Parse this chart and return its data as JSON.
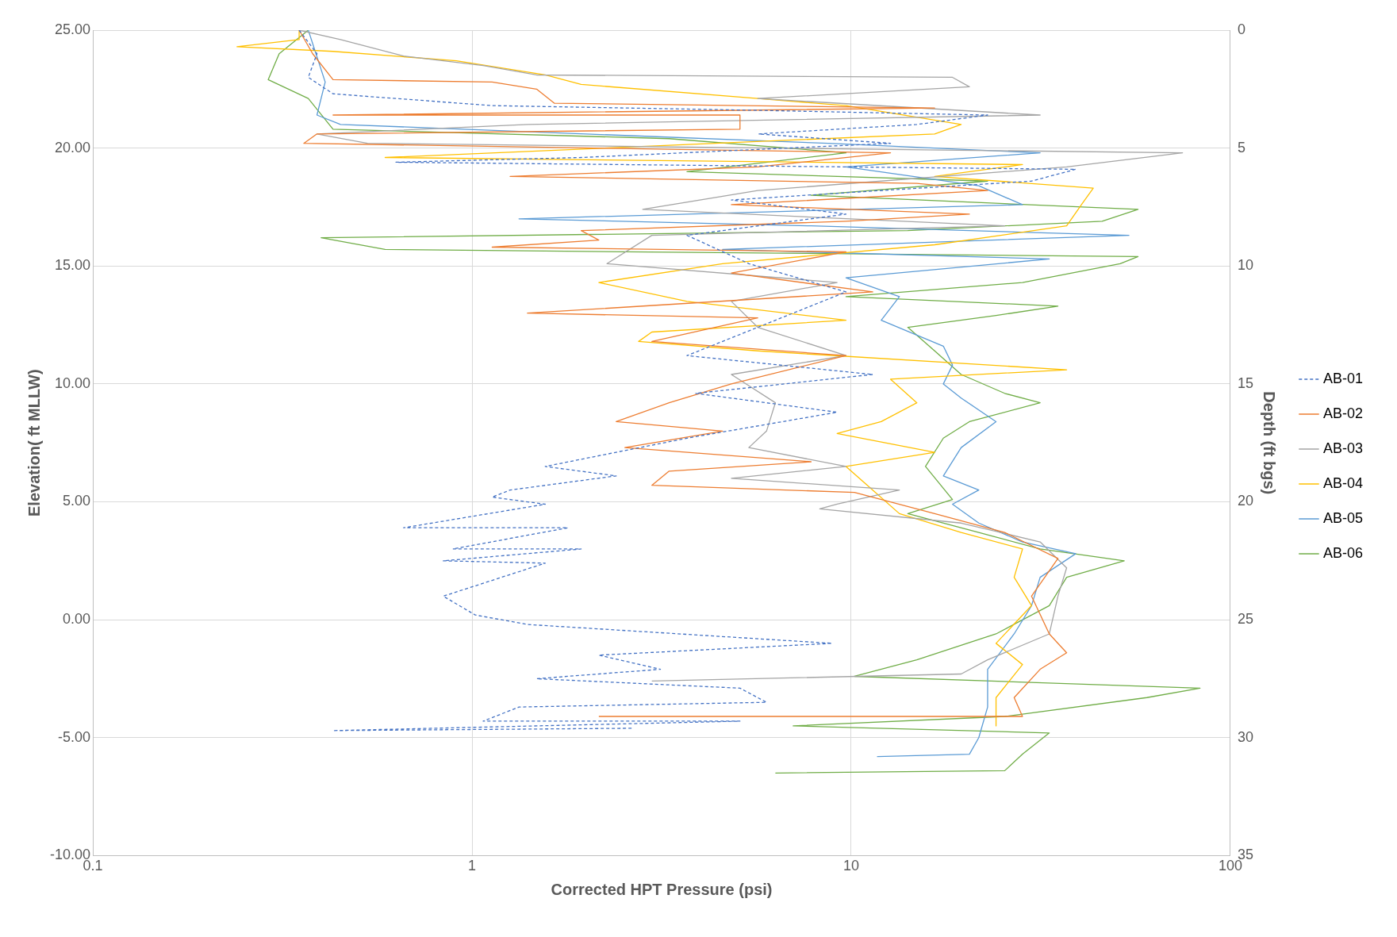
{
  "chart_data": {
    "type": "line",
    "xlabel": "Corrected HPT Pressure (psi)",
    "ylabel": "Elevation( ft MLLW)",
    "y2label": "Depth (ft bgs)",
    "log": "x",
    "grid": true,
    "legend": "right",
    "xlim": [
      0.1,
      100
    ],
    "xticks": [
      0.1,
      1,
      10,
      100
    ],
    "ylim": [
      -10,
      25
    ],
    "yticks": [
      {
        "value": -10,
        "label": "-10.00"
      },
      {
        "value": -5,
        "label": "-5.00"
      },
      {
        "value": 0,
        "label": "0.00"
      },
      {
        "value": 5,
        "label": "5.00"
      },
      {
        "value": 10,
        "label": "10.00"
      },
      {
        "value": 15,
        "label": "15.00"
      },
      {
        "value": 20,
        "label": "20.00"
      },
      {
        "value": 25,
        "label": "25.00"
      }
    ],
    "y2lim": [
      35,
      0
    ],
    "y2ticks": [
      0,
      5,
      10,
      15,
      20,
      25,
      30,
      35
    ],
    "series": [
      {
        "name": "AB-01",
        "color": "#4472c4",
        "line_style": "dashed",
        "x": [
          0.35,
          0.39,
          0.37,
          0.43,
          1.13,
          5.7,
          22.9,
          14.9,
          5.7,
          12.7,
          1.94,
          0.63,
          39.1,
          29.9,
          4.83,
          9.69,
          3.69,
          5.37,
          9.69,
          5.67,
          3.69,
          11.4,
          3.89,
          9.18,
          3.69,
          1.56,
          2.4,
          1.26,
          1.13,
          1.56,
          0.66,
          1.79,
          0.89,
          1.94,
          0.84,
          1.56,
          0.84,
          1.02,
          1.4,
          8.9,
          2.16,
          3.14,
          1.48,
          5.09,
          5.98,
          1.33,
          1.07,
          5.09,
          0.43,
          2.67
        ],
        "values": [
          25,
          24,
          23,
          22.3,
          21.8,
          21.6,
          21.4,
          21,
          20.6,
          20.2,
          19.6,
          19.4,
          19.1,
          18.6,
          17.8,
          17.2,
          16.3,
          15.1,
          13.9,
          12.4,
          11.2,
          10.4,
          9.6,
          8.8,
          7.7,
          6.5,
          6.1,
          5.5,
          5.2,
          4.9,
          3.9,
          3.9,
          3,
          3,
          2.5,
          2.4,
          1,
          0.2,
          -0.2,
          -1,
          -1.5,
          -2.1,
          -2.5,
          -2.9,
          -3.5,
          -3.7,
          -4.3,
          -4.3,
          -4.7,
          -4.6
        ]
      },
      {
        "name": "AB-02",
        "color": "#ed7d31",
        "x": [
          0.35,
          0.38,
          0.43,
          1.13,
          1.48,
          1.65,
          16.6,
          0.43,
          5.09,
          5.09,
          0.39,
          0.36,
          12.7,
          5.67,
          1.26,
          14.9,
          22.9,
          4.83,
          20.5,
          9.69,
          1.94,
          2.16,
          1.13,
          9.69,
          4.83,
          11.4,
          1.4,
          5.67,
          2.98,
          9.69,
          4.83,
          3.31,
          2.4,
          4.58,
          2.53,
          7.84,
          3.31,
          2.98,
          10.2,
          16.6,
          25.4,
          35.1,
          29.9,
          33.3,
          37,
          31.5,
          26.9,
          28.3,
          2.16
        ],
        "values": [
          25,
          24,
          22.9,
          22.8,
          22.5,
          21.9,
          21.7,
          21.4,
          21.4,
          20.8,
          20.6,
          20.2,
          19.8,
          19.2,
          18.8,
          18.5,
          18.2,
          17.6,
          17.2,
          16.9,
          16.5,
          16.1,
          15.8,
          15.6,
          14.7,
          13.9,
          13,
          12.8,
          11.8,
          11.2,
          10,
          9.2,
          8.4,
          8,
          7.3,
          6.7,
          6.3,
          5.7,
          5.4,
          4.5,
          3.7,
          2.6,
          1,
          -0.6,
          -1.4,
          -2.1,
          -3.3,
          -4.1,
          -4.1
        ]
      },
      {
        "name": "AB-03",
        "color": "#a5a5a5",
        "x": [
          0.35,
          0.45,
          0.66,
          1.07,
          1.48,
          18.5,
          20.5,
          5.67,
          31.5,
          1.4,
          0.39,
          0.53,
          74.8,
          37,
          5.67,
          2.82,
          25.4,
          2.98,
          2.27,
          9.18,
          4.83,
          5.67,
          9.69,
          4.83,
          6.31,
          5.98,
          5.37,
          9.69,
          4.83,
          13.4,
          9.18,
          8.26,
          19.5,
          31.5,
          37,
          35.1,
          33.3,
          22.9,
          19.5,
          2.98
        ],
        "values": [
          25,
          24.6,
          23.9,
          23.5,
          23.1,
          23,
          22.6,
          22.1,
          21.4,
          21,
          20.6,
          20.2,
          19.8,
          19.2,
          18.2,
          17.4,
          16.7,
          16.3,
          15.1,
          14.3,
          13.5,
          12.4,
          11.2,
          10.4,
          9.2,
          8,
          7.3,
          6.5,
          6,
          5.5,
          4.9,
          4.7,
          4.1,
          3.3,
          2.2,
          1,
          -0.6,
          -1.7,
          -2.3,
          -2.6
        ]
      },
      {
        "name": "AB-04",
        "color": "#ffc000",
        "x": [
          0.35,
          0.35,
          0.24,
          0.43,
          0.91,
          1.56,
          1.94,
          5.67,
          9.69,
          19.5,
          16.6,
          0.59,
          28.3,
          16.6,
          43.5,
          41.3,
          37,
          16.6,
          4.58,
          2.16,
          3.69,
          9.69,
          2.98,
          2.75,
          5.67,
          37,
          12.7,
          14.9,
          12,
          9.18,
          16.6,
          9.69,
          11.4,
          13.4,
          19.5,
          28.3,
          26.9,
          29.9,
          24.1,
          28.3,
          24.1,
          24.1
        ],
        "values": [
          25,
          24.6,
          24.3,
          24.1,
          23.7,
          23.1,
          22.7,
          22.1,
          21.8,
          21,
          20.6,
          19.6,
          19.3,
          18.8,
          18.3,
          17.8,
          16.7,
          15.9,
          15.1,
          14.3,
          13.5,
          12.7,
          12.2,
          11.8,
          11.4,
          10.6,
          10.2,
          9.2,
          8.4,
          7.9,
          7.1,
          6.5,
          5.5,
          4.5,
          3.7,
          3,
          1.8,
          0.6,
          -1,
          -1.9,
          -3.3,
          -4.5
        ]
      },
      {
        "name": "AB-05",
        "color": "#5b9bd5",
        "x": [
          0.37,
          0.41,
          0.39,
          0.45,
          8.71,
          31.5,
          9.69,
          21.7,
          28.3,
          1.33,
          7.84,
          54,
          4.58,
          33.3,
          9.69,
          13.4,
          12,
          17.5,
          18.5,
          17.5,
          19.5,
          24.1,
          19.5,
          17.5,
          21.7,
          18.5,
          21.7,
          28.3,
          39.1,
          31.5,
          29.9,
          26.9,
          22.9,
          22.9,
          21.7,
          20.5,
          11.7
        ],
        "values": [
          25,
          22.8,
          21.4,
          21,
          20.2,
          19.8,
          19.2,
          18.4,
          17.6,
          17,
          16.7,
          16.3,
          15.7,
          15.3,
          14.5,
          13.7,
          12.7,
          11.6,
          10.8,
          10,
          9.4,
          8.4,
          7.3,
          6.1,
          5.5,
          4.9,
          4.1,
          3.3,
          2.8,
          1.8,
          0.6,
          -0.6,
          -2.1,
          -3.7,
          -5,
          -5.7,
          -5.8
        ]
      },
      {
        "name": "AB-06",
        "color": "#70ad47",
        "x": [
          0.37,
          0.31,
          0.29,
          0.37,
          0.43,
          3.31,
          9.69,
          3.69,
          22.9,
          7.84,
          57.1,
          45.9,
          14.1,
          0.4,
          0.59,
          57.1,
          51.2,
          28.3,
          9.69,
          35.1,
          24.1,
          14.1,
          16.6,
          19.5,
          25.4,
          31.5,
          20.5,
          17.5,
          15.7,
          18.5,
          14.1,
          21.7,
          31.5,
          52.5,
          37,
          33.3,
          24.1,
          14.9,
          10.2,
          83.2,
          60.2,
          25.4,
          7.03,
          33.3,
          28.3,
          25.4,
          6.31
        ],
        "values": [
          25,
          24,
          22.9,
          22.1,
          20.8,
          20.4,
          19.8,
          19,
          18.6,
          18,
          17.4,
          16.9,
          16.5,
          16.2,
          15.7,
          15.4,
          15.1,
          14.3,
          13.7,
          13.3,
          12.9,
          12.4,
          11.4,
          10.4,
          9.6,
          9.2,
          8.4,
          7.7,
          6.5,
          5.1,
          4.5,
          3.7,
          3,
          2.5,
          1.8,
          0.6,
          -0.6,
          -1.7,
          -2.4,
          -2.9,
          -3.3,
          -4.1,
          -4.5,
          -4.8,
          -5.7,
          -6.4,
          -6.5
        ]
      }
    ]
  }
}
